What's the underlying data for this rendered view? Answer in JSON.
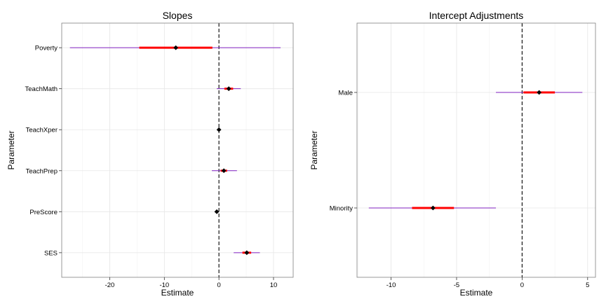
{
  "chart_data": [
    {
      "type": "coefficient-interval",
      "title": "Slopes",
      "xlabel": "Estimate",
      "ylabel": "Parameter",
      "xlim": [
        -28.8,
        13.6
      ],
      "xticks": [
        -20,
        -10,
        0,
        10
      ],
      "reference_line": 0,
      "grid": true,
      "parameters": [
        {
          "name": "Poverty",
          "estimate": -7.9,
          "inner": [
            -14.6,
            -1.2
          ],
          "outer": [
            -27.3,
            11.3
          ]
        },
        {
          "name": "TeachMath",
          "estimate": 1.8,
          "inner": [
            1.0,
            2.6
          ],
          "outer": [
            -0.4,
            4.0
          ]
        },
        {
          "name": "TeachXper",
          "estimate": 0.0,
          "inner": [
            -0.15,
            0.15
          ],
          "outer": [
            -0.3,
            0.3
          ]
        },
        {
          "name": "TeachPrep",
          "estimate": 0.9,
          "inner": [
            0.3,
            1.5
          ],
          "outer": [
            -1.3,
            3.3
          ]
        },
        {
          "name": "PreScore",
          "estimate": -0.4,
          "inner": [
            -0.5,
            -0.3
          ],
          "outer": [
            -0.6,
            -0.2
          ]
        },
        {
          "name": "SES",
          "estimate": 5.1,
          "inner": [
            4.3,
            5.9
          ],
          "outer": [
            2.7,
            7.5
          ]
        }
      ]
    },
    {
      "type": "coefficient-interval",
      "title": "Intercept Adjustments",
      "xlabel": "Estimate",
      "ylabel": "Parameter",
      "xlim": [
        -12.6,
        5.6
      ],
      "xticks": [
        -10,
        -5,
        0,
        5
      ],
      "reference_line": 0,
      "grid": true,
      "parameters": [
        {
          "name": "Male",
          "estimate": 1.3,
          "inner": [
            0.1,
            2.5
          ],
          "outer": [
            -2.0,
            4.6
          ]
        },
        {
          "name": "Minority",
          "estimate": -6.8,
          "inner": [
            -8.4,
            -5.2
          ],
          "outer": [
            -11.7,
            -2.0
          ]
        }
      ]
    }
  ],
  "colors": {
    "outer_interval": "#7f1fbf",
    "inner_interval": "#ff0000",
    "point": "#000000",
    "panel_border": "#7f7f7f",
    "grid_major": "#e6e6e6",
    "grid_minor": "#f2f2f2",
    "reference_line": "#000000"
  }
}
